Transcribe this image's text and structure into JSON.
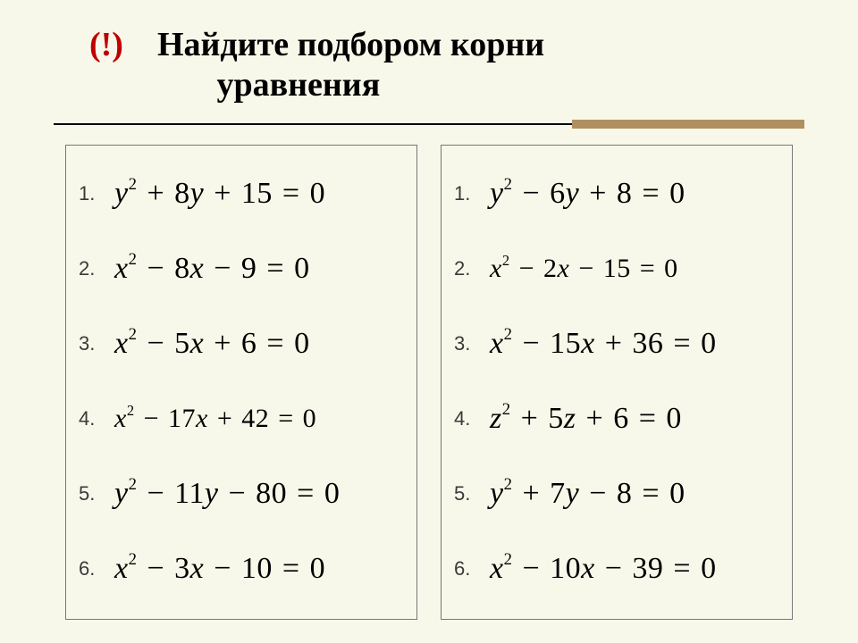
{
  "title": {
    "excl": "(!)",
    "line1": "Найдите подбором корни",
    "line2": "уравнения"
  },
  "layout": {
    "background": "#f8f8ea",
    "accent_color": "#b09060",
    "border_color": "#777"
  },
  "left": {
    "items": [
      {
        "num": "1.",
        "var": "y",
        "b_sign": "+",
        "b": "8",
        "c_sign": "+",
        "c": "15",
        "size": "normal"
      },
      {
        "num": "2.",
        "var": "x",
        "b_sign": "−",
        "b": "8",
        "c_sign": "−",
        "c": "9",
        "size": "normal"
      },
      {
        "num": "3.",
        "var": "x",
        "b_sign": "−",
        "b": "5",
        "c_sign": "+",
        "c": "6",
        "size": "normal"
      },
      {
        "num": "4.",
        "var": "x",
        "b_sign": "−",
        "b": "17",
        "c_sign": "+",
        "c": "42",
        "size": "small"
      },
      {
        "num": "5.",
        "var": "y",
        "b_sign": "−",
        "b": "11",
        "c_sign": "−",
        "c": "80",
        "size": "normal"
      },
      {
        "num": "6.",
        "var": "x",
        "b_sign": "−",
        "b": "3",
        "c_sign": "−",
        "c": "10",
        "size": "normal"
      }
    ]
  },
  "right": {
    "items": [
      {
        "num": "1.",
        "var": "y",
        "b_sign": "−",
        "b": "6",
        "c_sign": "+",
        "c": "8",
        "size": "normal"
      },
      {
        "num": "2.",
        "var": "x",
        "b_sign": "−",
        "b": "2",
        "c_sign": "−",
        "c": "15",
        "size": "small"
      },
      {
        "num": "3.",
        "var": "x",
        "b_sign": "−",
        "b": "15",
        "c_sign": "+",
        "c": "36",
        "size": "normal"
      },
      {
        "num": "4.",
        "var": "z",
        "b_sign": "+",
        "b": "5",
        "c_sign": "+",
        "c": "6",
        "size": "normal"
      },
      {
        "num": "5.",
        "var": "y",
        "b_sign": "+",
        "b": "7",
        "c_sign": "−",
        "c": "8",
        "size": "normal"
      },
      {
        "num": "6.",
        "var": "x",
        "b_sign": "−",
        "b": "10",
        "c_sign": "−",
        "c": "39",
        "size": "normal"
      }
    ]
  },
  "eq_tail": "= 0"
}
